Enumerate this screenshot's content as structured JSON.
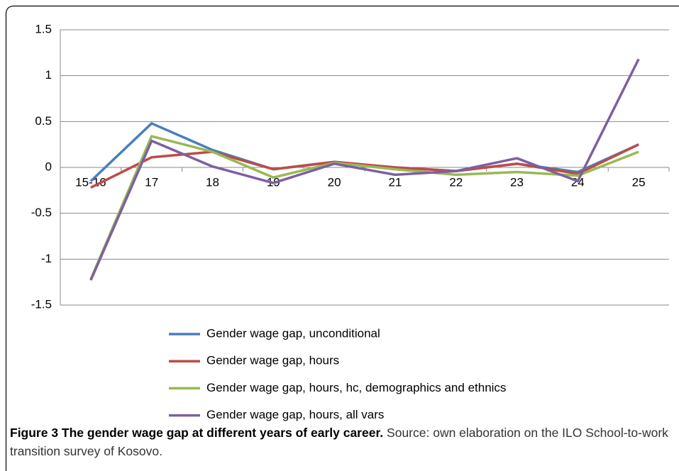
{
  "chart_data": {
    "type": "line",
    "categories": [
      "15-16",
      "17",
      "18",
      "19",
      "20",
      "21",
      "22",
      "23",
      "24",
      "25"
    ],
    "series": [
      {
        "name": "Gender wage gap, unconditional",
        "color": "#4a7ebb",
        "values": [
          -0.15,
          0.48,
          0.19,
          -0.02,
          0.06,
          0.0,
          -0.04,
          0.04,
          -0.05,
          0.25
        ]
      },
      {
        "name": "Gender wage gap, hours",
        "color": "#be4b48",
        "values": [
          -0.22,
          0.11,
          0.17,
          -0.02,
          0.06,
          0.0,
          -0.04,
          0.04,
          -0.07,
          0.25
        ]
      },
      {
        "name": "Gender wage gap, hours, hc, demographics and ethnics",
        "color": "#98b954",
        "values": [
          -1.22,
          0.34,
          0.17,
          -0.11,
          0.05,
          -0.02,
          -0.08,
          -0.05,
          -0.09,
          0.17
        ]
      },
      {
        "name": "Gender wage gap, hours, all vars",
        "color": "#7d60a0",
        "values": [
          -1.23,
          0.29,
          0.01,
          -0.17,
          0.04,
          -0.08,
          -0.04,
          0.1,
          -0.15,
          1.18
        ]
      }
    ],
    "ylim": [
      -1.5,
      1.5
    ],
    "yticks": [
      -1.5,
      -1,
      -0.5,
      0,
      0.5,
      1,
      1.5
    ],
    "grid": true,
    "caption_title": "Figure 3 The gender wage gap at different years of early career.",
    "caption_text": "Source: own elaboration on the ILO School-to-work transition survey of Kosovo."
  }
}
